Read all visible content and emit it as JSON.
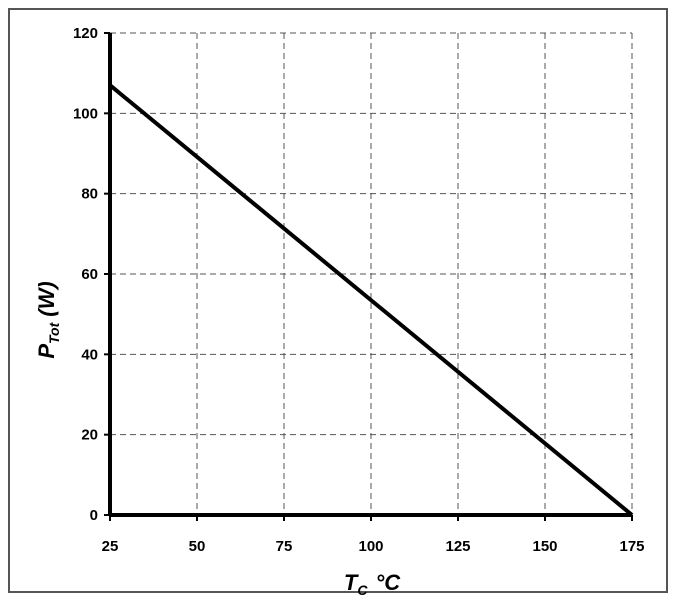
{
  "chart_data": {
    "type": "line",
    "xlabel": {
      "main": "T",
      "sub": "C",
      "unit": "°C"
    },
    "ylabel": {
      "main": "P",
      "sub": "Tot",
      "unit": "(W)"
    },
    "xlim": [
      25,
      175
    ],
    "ylim": [
      0,
      120
    ],
    "x_ticks": [
      25,
      50,
      75,
      100,
      125,
      150,
      175
    ],
    "y_ticks": [
      0,
      20,
      40,
      60,
      80,
      100,
      120
    ],
    "grid": true,
    "grid_style": "dashed",
    "series": [
      {
        "x": [
          25,
          175
        ],
        "y": [
          107,
          0
        ],
        "color": "#000000"
      }
    ]
  }
}
